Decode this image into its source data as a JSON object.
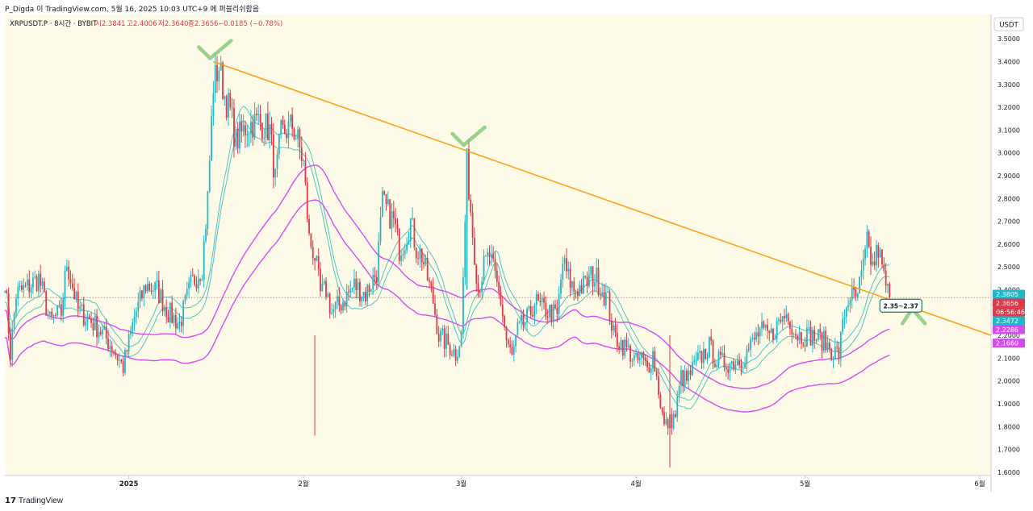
{
  "header": {
    "text": "P_Digda 이 TradingView.com, 5월 16, 2025 10:03 UTC+9 에 퍼블리쉬함음"
  },
  "footer": {
    "logo_mark": "17",
    "logo_text": "TradingView"
  },
  "colors": {
    "background": "#fdfbe7",
    "up": "#26a69a",
    "down": "#ef5350",
    "candle_up": "#1fb8c9",
    "candle_down": "#e0394a",
    "trendline": "#f7a21b",
    "band_teal": "#4fc3c9",
    "band_magenta": "#d64bf0",
    "check_mark": "#86c97a"
  },
  "chart_data": {
    "type": "candlestick",
    "symbol_line": {
      "symbol": "XRPUSDT.P · 8시간 · BYBIT",
      "open": "시2.3841",
      "high": "고2.4006",
      "low": "저2.3640",
      "close": "종2.3656",
      "change": "−0.0185 (−0.78%)"
    },
    "currency": "USDT",
    "ylim": [
      1.55,
      3.55
    ],
    "y_ticks": [
      "3.5000",
      "3.4000",
      "3.3000",
      "3.2000",
      "3.1000",
      "3.0000",
      "2.9000",
      "2.8000",
      "2.7000",
      "2.6000",
      "2.5000",
      "2.4000",
      "2.3000",
      "2.2000",
      "2.1000",
      "2.0000",
      "1.9000",
      "1.8000",
      "1.7000",
      "1.6000"
    ],
    "x_range": [
      "2024-12-10",
      "2025-06-03"
    ],
    "x_ticks": [
      {
        "date": "2025-01-01",
        "label": "2025"
      },
      {
        "date": "2025-02-01",
        "label": "2월"
      },
      {
        "date": "2025-03-01",
        "label": "3월"
      },
      {
        "date": "2025-04-01",
        "label": "4월"
      },
      {
        "date": "2025-05-01",
        "label": "5월"
      },
      {
        "date": "2025-06-01",
        "label": "6월"
      }
    ],
    "price_path": [
      [
        "2024-12-10",
        2.45
      ],
      [
        "2024-12-11",
        2.12
      ],
      [
        "2024-12-12",
        2.38
      ],
      [
        "2024-12-14",
        2.41
      ],
      [
        "2024-12-16",
        2.45
      ],
      [
        "2024-12-17",
        2.36
      ],
      [
        "2024-12-18",
        2.26
      ],
      [
        "2024-12-20",
        2.3
      ],
      [
        "2024-12-21",
        2.52
      ],
      [
        "2024-12-23",
        2.31
      ],
      [
        "2024-12-25",
        2.27
      ],
      [
        "2024-12-27",
        2.22
      ],
      [
        "2024-12-29",
        2.15
      ],
      [
        "2024-12-31",
        2.06
      ],
      [
        "2025-01-02",
        2.28
      ],
      [
        "2025-01-04",
        2.42
      ],
      [
        "2025-01-06",
        2.4
      ],
      [
        "2025-01-08",
        2.3
      ],
      [
        "2025-01-10",
        2.25
      ],
      [
        "2025-01-12",
        2.42
      ],
      [
        "2025-01-14",
        2.5
      ],
      [
        "2025-01-15",
        2.8
      ],
      [
        "2025-01-16",
        3.3
      ],
      [
        "2025-01-17",
        3.38
      ],
      [
        "2025-01-18",
        3.25
      ],
      [
        "2025-01-19",
        3.18
      ],
      [
        "2025-01-20",
        3.05
      ],
      [
        "2025-01-22",
        3.12
      ],
      [
        "2025-01-24",
        3.14
      ],
      [
        "2025-01-26",
        3.1
      ],
      [
        "2025-01-27",
        2.88
      ],
      [
        "2025-01-28",
        3.08
      ],
      [
        "2025-01-30",
        3.12
      ],
      [
        "2025-01-31",
        3.05
      ],
      [
        "2025-02-01",
        2.95
      ],
      [
        "2025-02-02",
        2.62
      ],
      [
        "2025-02-03",
        2.55
      ],
      [
        "2025-02-04",
        2.38
      ],
      [
        "2025-02-05",
        2.4
      ],
      [
        "2025-02-06",
        2.3
      ],
      [
        "2025-02-08",
        2.35
      ],
      [
        "2025-02-10",
        2.42
      ],
      [
        "2025-02-12",
        2.38
      ],
      [
        "2025-02-14",
        2.48
      ],
      [
        "2025-02-15",
        2.78
      ],
      [
        "2025-02-16",
        2.74
      ],
      [
        "2025-02-17",
        2.7
      ],
      [
        "2025-02-18",
        2.58
      ],
      [
        "2025-02-19",
        2.62
      ],
      [
        "2025-02-20",
        2.7
      ],
      [
        "2025-02-21",
        2.58
      ],
      [
        "2025-02-22",
        2.55
      ],
      [
        "2025-02-24",
        2.35
      ],
      [
        "2025-02-25",
        2.2
      ],
      [
        "2025-02-27",
        2.15
      ],
      [
        "2025-02-28",
        2.12
      ],
      [
        "2025-03-01",
        2.2
      ],
      [
        "2025-03-02",
        2.95
      ],
      [
        "2025-03-03",
        2.65
      ],
      [
        "2025-03-04",
        2.4
      ],
      [
        "2025-03-05",
        2.5
      ],
      [
        "2025-03-06",
        2.55
      ],
      [
        "2025-03-07",
        2.45
      ],
      [
        "2025-03-08",
        2.35
      ],
      [
        "2025-03-09",
        2.18
      ],
      [
        "2025-03-10",
        2.1
      ],
      [
        "2025-03-11",
        2.22
      ],
      [
        "2025-03-13",
        2.28
      ],
      [
        "2025-03-14",
        2.35
      ],
      [
        "2025-03-15",
        2.32
      ],
      [
        "2025-03-17",
        2.3
      ],
      [
        "2025-03-18",
        2.28
      ],
      [
        "2025-03-19",
        2.52
      ],
      [
        "2025-03-20",
        2.45
      ],
      [
        "2025-03-21",
        2.4
      ],
      [
        "2025-03-23",
        2.42
      ],
      [
        "2025-03-24",
        2.46
      ],
      [
        "2025-03-25",
        2.45
      ],
      [
        "2025-03-27",
        2.35
      ],
      [
        "2025-03-28",
        2.2
      ],
      [
        "2025-03-30",
        2.15
      ],
      [
        "2025-03-31",
        2.12
      ],
      [
        "2025-04-01",
        2.08
      ],
      [
        "2025-04-02",
        2.1
      ],
      [
        "2025-04-03",
        2.05
      ],
      [
        "2025-04-04",
        2.12
      ],
      [
        "2025-04-06",
        1.8
      ],
      [
        "2025-04-07",
        1.82
      ],
      [
        "2025-04-08",
        1.85
      ],
      [
        "2025-04-09",
        2.02
      ],
      [
        "2025-04-10",
        2.0
      ],
      [
        "2025-04-11",
        2.05
      ],
      [
        "2025-04-13",
        2.12
      ],
      [
        "2025-04-14",
        2.15
      ],
      [
        "2025-04-15",
        2.1
      ],
      [
        "2025-04-16",
        2.08
      ],
      [
        "2025-04-18",
        2.08
      ],
      [
        "2025-04-20",
        2.1
      ],
      [
        "2025-04-22",
        2.18
      ],
      [
        "2025-04-23",
        2.22
      ],
      [
        "2025-04-24",
        2.2
      ],
      [
        "2025-04-25",
        2.2
      ],
      [
        "2025-04-27",
        2.28
      ],
      [
        "2025-04-28",
        2.3
      ],
      [
        "2025-04-29",
        2.22
      ],
      [
        "2025-04-30",
        2.2
      ],
      [
        "2025-05-02",
        2.2
      ],
      [
        "2025-05-04",
        2.18
      ],
      [
        "2025-05-06",
        2.13
      ],
      [
        "2025-05-07",
        2.12
      ],
      [
        "2025-05-08",
        2.3
      ],
      [
        "2025-05-09",
        2.38
      ],
      [
        "2025-05-10",
        2.35
      ],
      [
        "2025-05-11",
        2.45
      ],
      [
        "2025-05-12",
        2.6
      ],
      [
        "2025-05-13",
        2.5
      ],
      [
        "2025-05-14",
        2.58
      ],
      [
        "2025-05-15",
        2.45
      ],
      [
        "2025-05-16",
        2.3656
      ]
    ],
    "spikes": [
      {
        "date": "2025-02-03",
        "low": 1.76
      },
      {
        "date": "2025-03-02",
        "high": 3.02
      },
      {
        "date": "2025-04-07",
        "low": 1.62
      }
    ],
    "trendline": {
      "start": [
        "2025-01-16",
        3.4
      ],
      "end": [
        "2025-06-03",
        2.2
      ]
    },
    "check_marks": [
      {
        "date": "2025-01-16",
        "value": 3.4
      },
      {
        "date": "2025-03-02",
        "value": 3.02
      },
      {
        "date": "2025-05-20",
        "value": 2.28
      }
    ],
    "annotation": {
      "text": "2.35~2.37",
      "date": "2025-05-18",
      "value": 2.33
    },
    "price_labels": [
      {
        "value": 2.3805,
        "text": "2.3805",
        "color": "#1fb8c9"
      },
      {
        "value": 2.3656,
        "text": "2.3656",
        "color": "#e0394a"
      },
      {
        "value": 2.347,
        "text": "06:56:46",
        "color": "#e0394a"
      },
      {
        "value": 2.3472,
        "text": "2.3472",
        "color": "#1fb8c9"
      },
      {
        "value": 2.2286,
        "text": "2.2286",
        "color": "#d64bf0"
      },
      {
        "value": 2.166,
        "text": "2.1660",
        "color": "#d64bf0"
      }
    ]
  }
}
